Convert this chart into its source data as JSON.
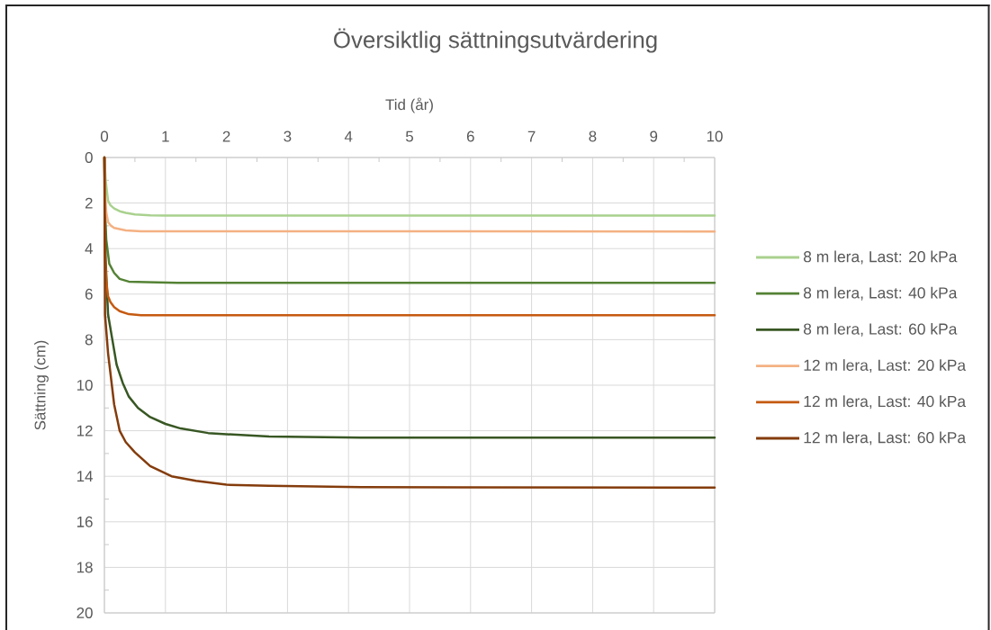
{
  "chart_data": {
    "type": "line",
    "title": "Översiktlig sättningsutvärdering",
    "xlabel": "Tid (år)",
    "ylabel": "Sättning (cm)",
    "xlim": [
      0,
      10
    ],
    "ylim": [
      20,
      0
    ],
    "xticks": [
      0,
      {
        "value": 0.5,
        "label": null
      },
      1,
      {
        "value": 1.5,
        "label": null
      },
      2,
      {
        "value": 2.5,
        "label": null
      },
      3,
      {
        "value": 3.5,
        "label": null
      },
      4,
      {
        "value": 4.5,
        "label": null
      },
      5,
      {
        "value": 5.5,
        "label": null
      },
      6,
      {
        "value": 6.5,
        "label": null
      },
      7,
      {
        "value": 7.5,
        "label": null
      },
      8,
      {
        "value": 8.5,
        "label": null
      },
      9,
      {
        "value": 9.5,
        "label": null
      },
      10
    ],
    "yticks": [
      0,
      {
        "value": 1,
        "label": null
      },
      2,
      {
        "value": 3,
        "label": null
      },
      4,
      {
        "value": 5,
        "label": null
      },
      6,
      {
        "value": 7,
        "label": null
      },
      8,
      {
        "value": 9,
        "label": null
      },
      10,
      {
        "value": 11,
        "label": null
      },
      12,
      {
        "value": 13,
        "label": null
      },
      14,
      {
        "value": 15,
        "label": null
      },
      16,
      {
        "value": 17,
        "label": null
      },
      18,
      {
        "value": 19,
        "label": null
      },
      20
    ],
    "grid": true,
    "legend": "right",
    "marker": "none",
    "line_style": "solid",
    "series": [
      {
        "name": "8 m lera, Last: 20 kPa",
        "color": "#a9d18e",
        "x": [
          0,
          0.02,
          0.06,
          0.1,
          0.16,
          0.25,
          0.35,
          0.5,
          0.75,
          1,
          10
        ],
        "values": [
          0,
          1.0,
          1.9,
          2.1,
          2.24,
          2.36,
          2.43,
          2.5,
          2.54,
          2.55,
          2.55
        ]
      },
      {
        "name": "8 m lera, Last: 40 kPa",
        "color": "#548235",
        "x": [
          0,
          0.01,
          0.03,
          0.08,
          0.16,
          0.25,
          0.4,
          0.7,
          1.2,
          10
        ],
        "values": [
          0,
          2.4,
          3.6,
          4.67,
          5.07,
          5.33,
          5.45,
          5.47,
          5.5,
          5.5
        ]
      },
      {
        "name": "8 m lera, Last: 60 kPa",
        "color": "#385723",
        "x": [
          0,
          0.02,
          0.06,
          0.13,
          0.2,
          0.3,
          0.4,
          0.55,
          0.75,
          1,
          1.25,
          1.7,
          2,
          2.7,
          4.2,
          10
        ],
        "values": [
          0,
          4.5,
          6.9,
          8.0,
          9.1,
          9.9,
          10.5,
          11.0,
          11.4,
          11.7,
          11.9,
          12.1,
          12.15,
          12.25,
          12.3,
          12.3
        ]
      },
      {
        "name": "12 m lera, Last: 20 kPa",
        "color": "#f4b183",
        "x": [
          0,
          0.01,
          0.03,
          0.06,
          0.1,
          0.16,
          0.35,
          0.6,
          10
        ],
        "values": [
          0,
          1.6,
          2.4,
          2.83,
          2.98,
          3.09,
          3.2,
          3.24,
          3.25
        ]
      },
      {
        "name": "12 m lera, Last: 40 kPa",
        "color": "#c55a11",
        "x": [
          0,
          0.01,
          0.03,
          0.06,
          0.1,
          0.16,
          0.25,
          0.4,
          0.6,
          10
        ],
        "values": [
          0,
          4.2,
          5.4,
          6.1,
          6.35,
          6.57,
          6.75,
          6.88,
          6.93,
          6.93
        ]
      },
      {
        "name": "12 m lera, Last: 60 kPa",
        "color": "#843c0c",
        "x": [
          0,
          0.01,
          0.06,
          0.16,
          0.25,
          0.35,
          0.5,
          0.75,
          1.1,
          1.5,
          2,
          2.7,
          4.2,
          10
        ],
        "values": [
          0,
          6.9,
          8.6,
          10.85,
          12.0,
          12.5,
          12.95,
          13.55,
          14.0,
          14.2,
          14.37,
          14.42,
          14.48,
          14.5
        ]
      }
    ]
  }
}
